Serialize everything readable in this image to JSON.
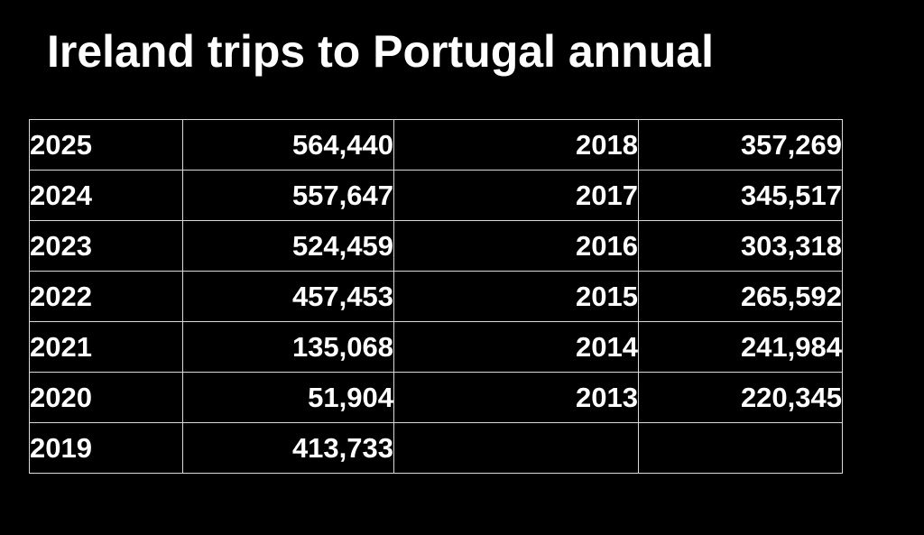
{
  "title": "Ireland trips to Portugal annual",
  "chart_data": {
    "type": "table",
    "title": "Ireland trips to Portugal annual",
    "columns": [
      "year",
      "trips"
    ],
    "rows": [
      {
        "year": "2025",
        "trips": "564,440"
      },
      {
        "year": "2024",
        "trips": "557,647"
      },
      {
        "year": "2023",
        "trips": "524,459"
      },
      {
        "year": "2022",
        "trips": "457,453"
      },
      {
        "year": "2021",
        "trips": "135,068"
      },
      {
        "year": "2020",
        "trips": "51,904"
      },
      {
        "year": "2019",
        "trips": "413,733"
      },
      {
        "year": "2018",
        "trips": "357,269"
      },
      {
        "year": "2017",
        "trips": "345,517"
      },
      {
        "year": "2016",
        "trips": "303,318"
      },
      {
        "year": "2015",
        "trips": "265,592"
      },
      {
        "year": "2014",
        "trips": "241,984"
      },
      {
        "year": "2013",
        "trips": "220,345"
      }
    ],
    "colors": {
      "background": "#000000",
      "text": "#ffffff",
      "border": "#d9d9d9"
    }
  }
}
